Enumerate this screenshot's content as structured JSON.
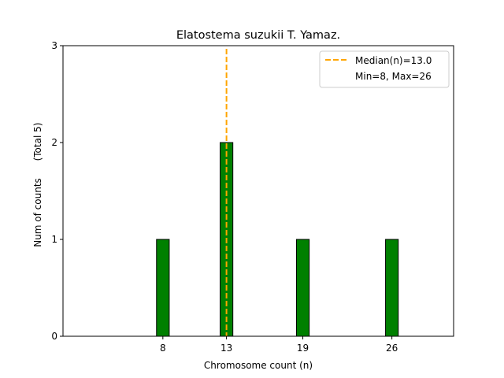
{
  "chart_data": {
    "type": "bar",
    "title": "Elatostema suzukii T. Yamaz.",
    "xlabel": "Chromosome count (n)",
    "ylabel": "Num of counts",
    "ylabel_note": "(Total 5)",
    "x": [
      8,
      13,
      19,
      26
    ],
    "values": [
      1,
      2,
      1,
      1
    ],
    "xticks": [
      8,
      13,
      19,
      26
    ],
    "yticks": [
      0,
      1,
      2,
      3
    ],
    "xlim": [
      0.15,
      30.85
    ],
    "ylim": [
      0,
      3
    ],
    "bar_width": 1,
    "bar_color": "#008000",
    "bar_edge_color": "#000000",
    "grid": false,
    "median_line": {
      "value": 13.0,
      "color": "#FFA500",
      "style": "dashed"
    },
    "legend": {
      "placement": "top-right",
      "entries": [
        "Median(n)=13.0",
        "Min=8, Max=26"
      ]
    }
  }
}
